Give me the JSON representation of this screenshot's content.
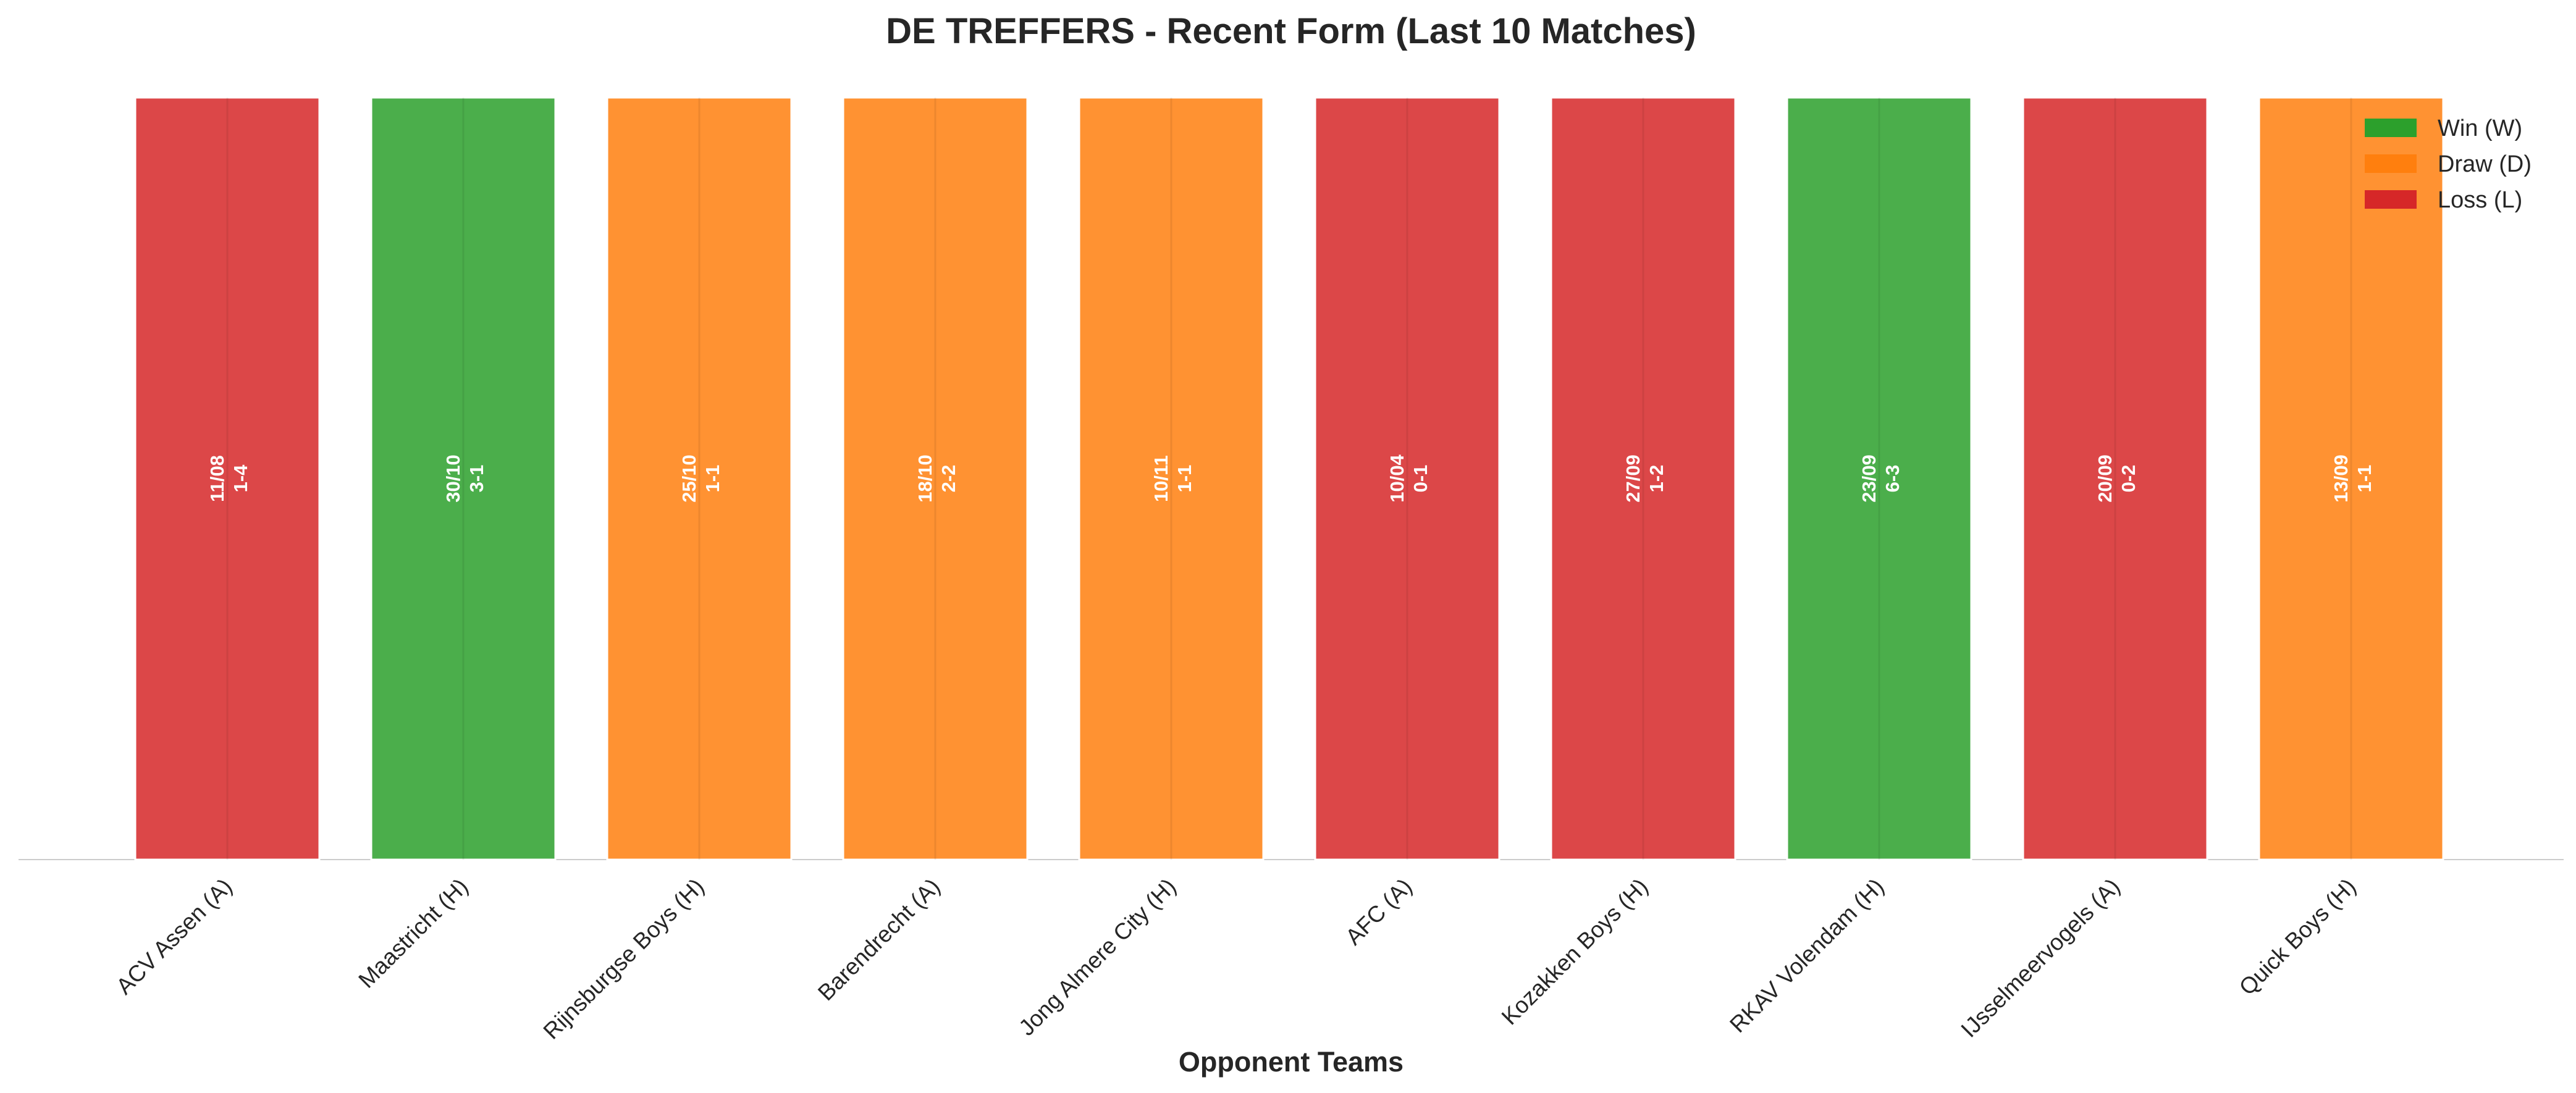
{
  "chart_data": {
    "type": "bar",
    "title": "DE TREFFERS - Recent Form (Last 10 Matches)",
    "xlabel": "Opponent Teams",
    "ylabel": "",
    "ylim": [
      0,
      1
    ],
    "grid": false,
    "legend_position": "top-right",
    "categories": [
      "ACV Assen (A)",
      "Maastricht (H)",
      "Rijnsburgse Boys (H)",
      "Barendrecht (A)",
      "Jong Almere City (H)",
      "AFC (A)",
      "Kozakken Boys (H)",
      "RKAV Volendam (H)",
      "IJsselmeervogels (A)",
      "Quick Boys (H)"
    ],
    "values": [
      1,
      1,
      1,
      1,
      1,
      1,
      1,
      1,
      1,
      1
    ],
    "results": [
      "L",
      "W",
      "D",
      "D",
      "D",
      "L",
      "L",
      "W",
      "L",
      "D"
    ],
    "dates": [
      "11/08",
      "30/10",
      "25/10",
      "18/10",
      "10/11",
      "10/04",
      "27/09",
      "23/09",
      "20/09",
      "13/09"
    ],
    "scores": [
      "1-4",
      "3-1",
      "1-1",
      "2-2",
      "1-1",
      "0-1",
      "1-2",
      "6-3",
      "0-2",
      "1-1"
    ],
    "legend": [
      {
        "key": "W",
        "label": "Win (W)",
        "color": "#2ca02c"
      },
      {
        "key": "D",
        "label": "Draw (D)",
        "color": "#ff7f0e"
      },
      {
        "key": "L",
        "label": "Loss (L)",
        "color": "#d62728"
      }
    ]
  }
}
